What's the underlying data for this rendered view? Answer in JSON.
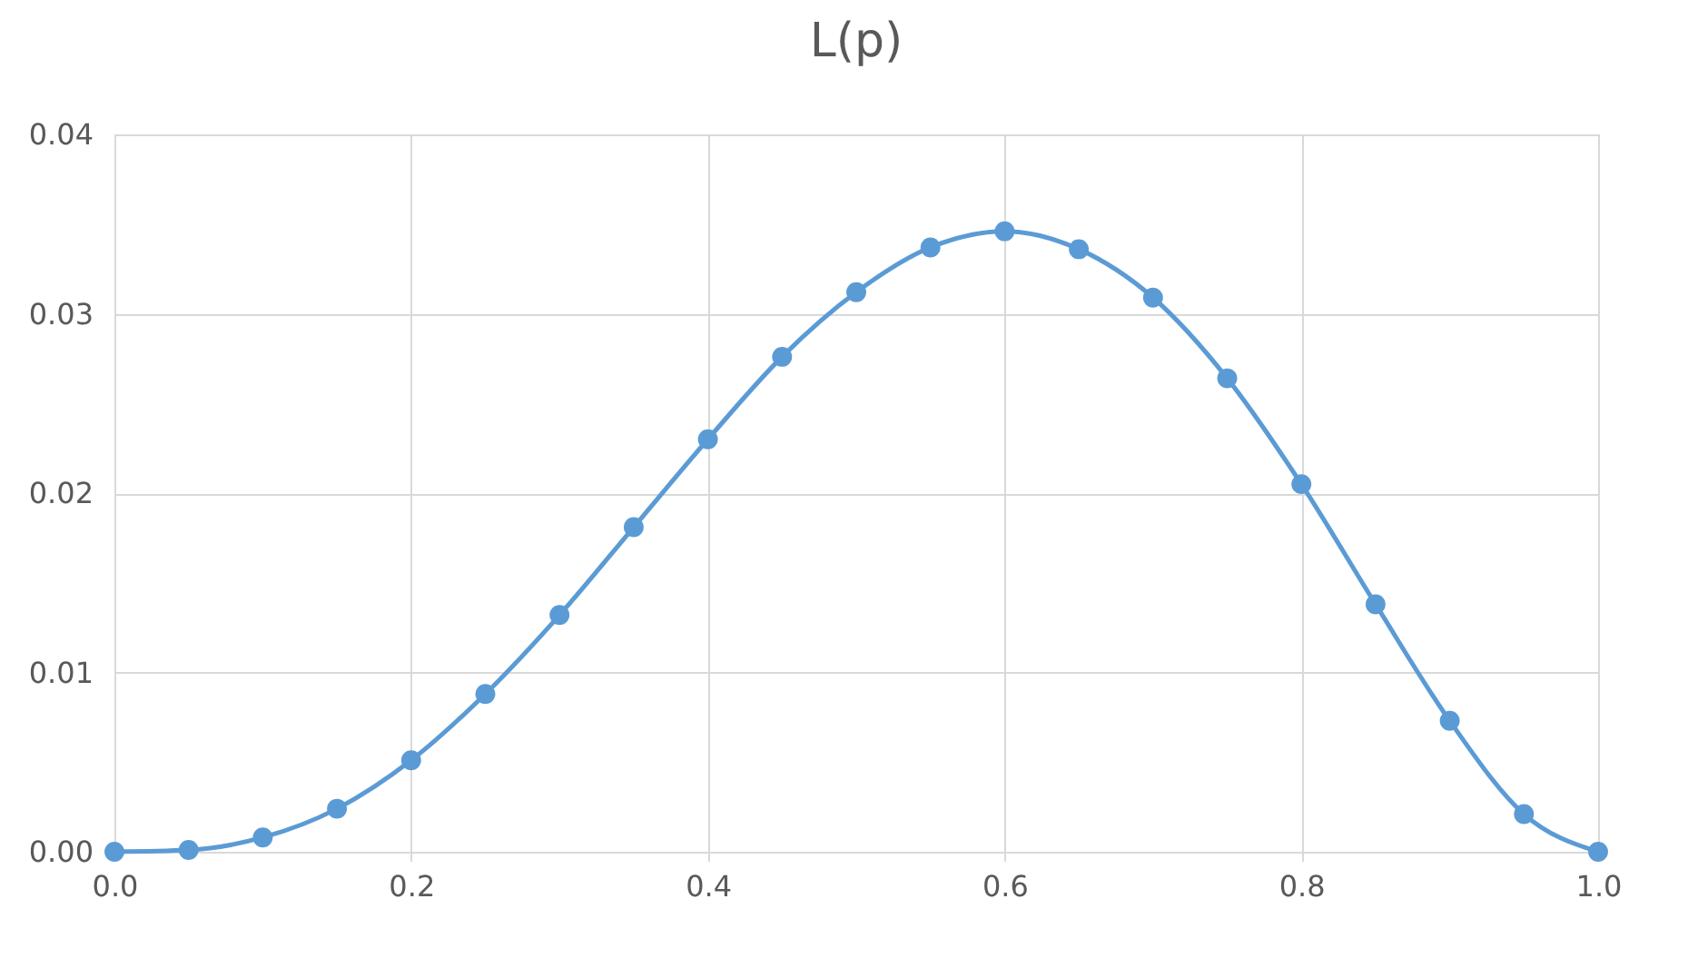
{
  "chart_data": {
    "type": "line",
    "title": "L(p)",
    "x": [
      0,
      0.05,
      0.1,
      0.15,
      0.2,
      0.25,
      0.3,
      0.35,
      0.4,
      0.45,
      0.5,
      0.55,
      0.6,
      0.65,
      0.7,
      0.75,
      0.8,
      0.85,
      0.9,
      0.95,
      1.0
    ],
    "series": [
      {
        "color": "#5b9bd5",
        "values": [
          0,
          0.0001,
          0.0008,
          0.0024,
          0.0051,
          0.0088,
          0.0132,
          0.0181,
          0.023,
          0.0276,
          0.0312,
          0.0337,
          0.0346,
          0.0336,
          0.0309,
          0.0264,
          0.0205,
          0.0138,
          0.0073,
          0.0021,
          0
        ]
      }
    ],
    "xlim": [
      0,
      1
    ],
    "xticks": [
      {
        "value": 0,
        "label": "0.0"
      },
      {
        "value": 0.2,
        "label": "0.2"
      },
      {
        "value": 0.4,
        "label": "0.4"
      },
      {
        "value": 0.6,
        "label": "0.6"
      },
      {
        "value": 0.8,
        "label": "0.8"
      },
      {
        "value": 1,
        "label": "1.0"
      }
    ],
    "ylim": [
      0,
      0.04
    ],
    "yticks": [
      {
        "value": 0,
        "label": "0.00"
      },
      {
        "value": 0.01,
        "label": "0.01"
      },
      {
        "value": 0.02,
        "label": "0.02"
      },
      {
        "value": 0.03,
        "label": "0.03"
      },
      {
        "value": 0.04,
        "label": "0.04"
      }
    ],
    "grid": true,
    "marker": "circle",
    "line_style": "solid",
    "legend": false
  }
}
